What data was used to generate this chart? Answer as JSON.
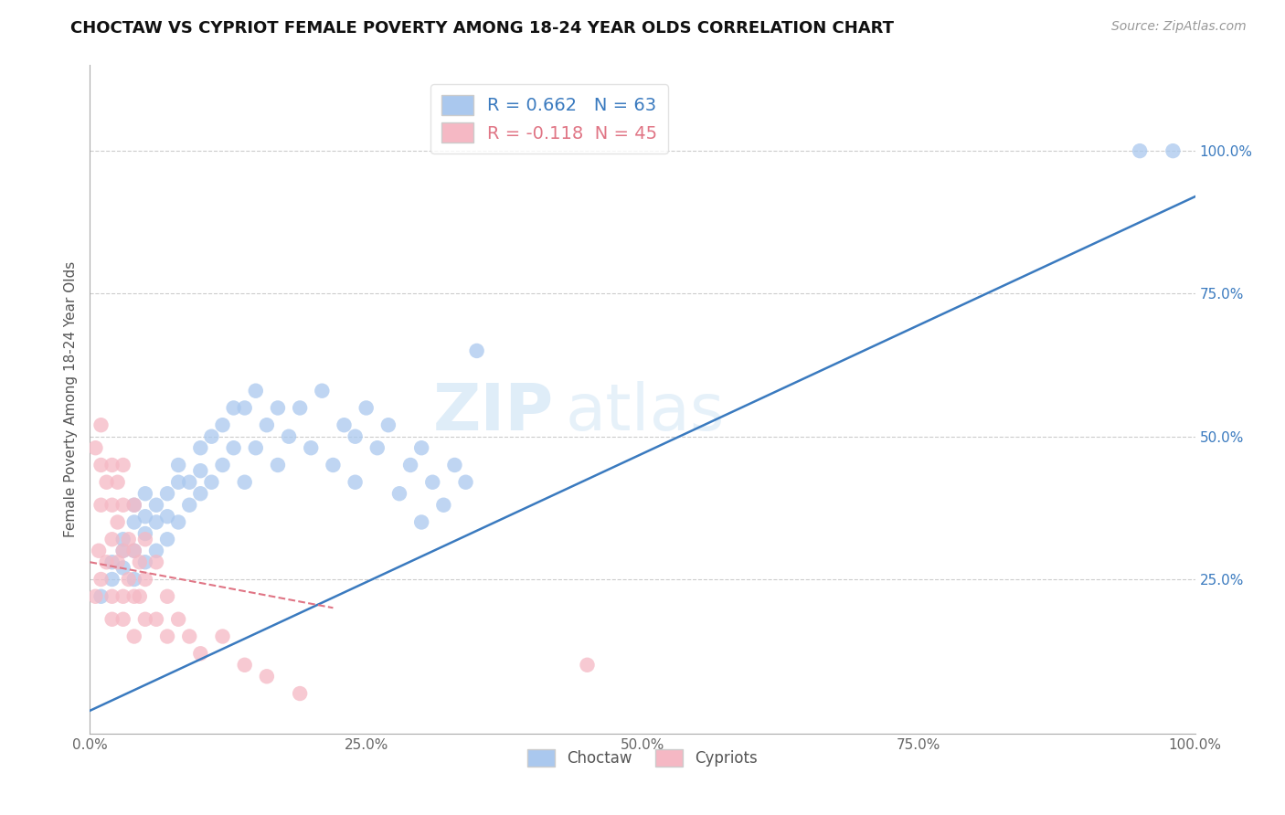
{
  "title": "CHOCTAW VS CYPRIOT FEMALE POVERTY AMONG 18-24 YEAR OLDS CORRELATION CHART",
  "source": "Source: ZipAtlas.com",
  "ylabel": "Female Poverty Among 18-24 Year Olds",
  "choctaw_R": 0.662,
  "choctaw_N": 63,
  "cypriot_R": -0.118,
  "cypriot_N": 45,
  "choctaw_color": "#aac8ee",
  "cypriot_color": "#f5b8c4",
  "choctaw_line_color": "#3a7abf",
  "cypriot_line_color": "#e07585",
  "cypriot_line_dash": true,
  "watermark_zip": "ZIP",
  "watermark_atlas": "atlas",
  "xlim": [
    0.0,
    1.0
  ],
  "ylim": [
    -0.02,
    1.15
  ],
  "xticks": [
    0.0,
    0.25,
    0.5,
    0.75,
    1.0
  ],
  "yticks": [
    0.25,
    0.5,
    0.75,
    1.0
  ],
  "xtick_labels": [
    "0.0%",
    "25.0%",
    "50.0%",
    "75.0%",
    "100.0%"
  ],
  "ytick_labels": [
    "25.0%",
    "50.0%",
    "75.0%",
    "100.0%"
  ],
  "choctaw_x": [
    0.01,
    0.02,
    0.02,
    0.03,
    0.03,
    0.03,
    0.04,
    0.04,
    0.04,
    0.04,
    0.05,
    0.05,
    0.05,
    0.05,
    0.06,
    0.06,
    0.06,
    0.07,
    0.07,
    0.07,
    0.08,
    0.08,
    0.08,
    0.09,
    0.09,
    0.1,
    0.1,
    0.1,
    0.11,
    0.11,
    0.12,
    0.12,
    0.13,
    0.13,
    0.14,
    0.14,
    0.15,
    0.15,
    0.16,
    0.17,
    0.17,
    0.18,
    0.19,
    0.2,
    0.21,
    0.22,
    0.23,
    0.24,
    0.24,
    0.25,
    0.26,
    0.27,
    0.28,
    0.29,
    0.3,
    0.3,
    0.31,
    0.32,
    0.33,
    0.34,
    0.35,
    0.95,
    0.98
  ],
  "choctaw_y": [
    0.22,
    0.28,
    0.25,
    0.3,
    0.27,
    0.32,
    0.35,
    0.3,
    0.38,
    0.25,
    0.33,
    0.36,
    0.28,
    0.4,
    0.35,
    0.3,
    0.38,
    0.4,
    0.32,
    0.36,
    0.42,
    0.35,
    0.45,
    0.38,
    0.42,
    0.48,
    0.4,
    0.44,
    0.5,
    0.42,
    0.52,
    0.45,
    0.55,
    0.48,
    0.55,
    0.42,
    0.58,
    0.48,
    0.52,
    0.55,
    0.45,
    0.5,
    0.55,
    0.48,
    0.58,
    0.45,
    0.52,
    0.5,
    0.42,
    0.55,
    0.48,
    0.52,
    0.4,
    0.45,
    0.48,
    0.35,
    0.42,
    0.38,
    0.45,
    0.42,
    0.65,
    1.0,
    1.0
  ],
  "cypriot_x": [
    0.005,
    0.005,
    0.008,
    0.01,
    0.01,
    0.01,
    0.01,
    0.015,
    0.015,
    0.02,
    0.02,
    0.02,
    0.02,
    0.02,
    0.025,
    0.025,
    0.025,
    0.03,
    0.03,
    0.03,
    0.03,
    0.03,
    0.035,
    0.035,
    0.04,
    0.04,
    0.04,
    0.04,
    0.045,
    0.045,
    0.05,
    0.05,
    0.05,
    0.06,
    0.06,
    0.07,
    0.07,
    0.08,
    0.09,
    0.1,
    0.12,
    0.14,
    0.16,
    0.19,
    0.45
  ],
  "cypriot_y": [
    0.22,
    0.48,
    0.3,
    0.25,
    0.38,
    0.45,
    0.52,
    0.28,
    0.42,
    0.22,
    0.32,
    0.38,
    0.45,
    0.18,
    0.28,
    0.35,
    0.42,
    0.22,
    0.3,
    0.38,
    0.45,
    0.18,
    0.25,
    0.32,
    0.22,
    0.3,
    0.38,
    0.15,
    0.22,
    0.28,
    0.18,
    0.25,
    0.32,
    0.18,
    0.28,
    0.15,
    0.22,
    0.18,
    0.15,
    0.12,
    0.15,
    0.1,
    0.08,
    0.05,
    0.1
  ],
  "choctaw_line_x0": 0.0,
  "choctaw_line_x1": 1.0,
  "choctaw_line_y0": 0.02,
  "choctaw_line_y1": 0.92,
  "cypriot_line_x0": 0.0,
  "cypriot_line_x1": 0.22,
  "cypriot_line_y0": 0.28,
  "cypriot_line_y1": 0.2
}
